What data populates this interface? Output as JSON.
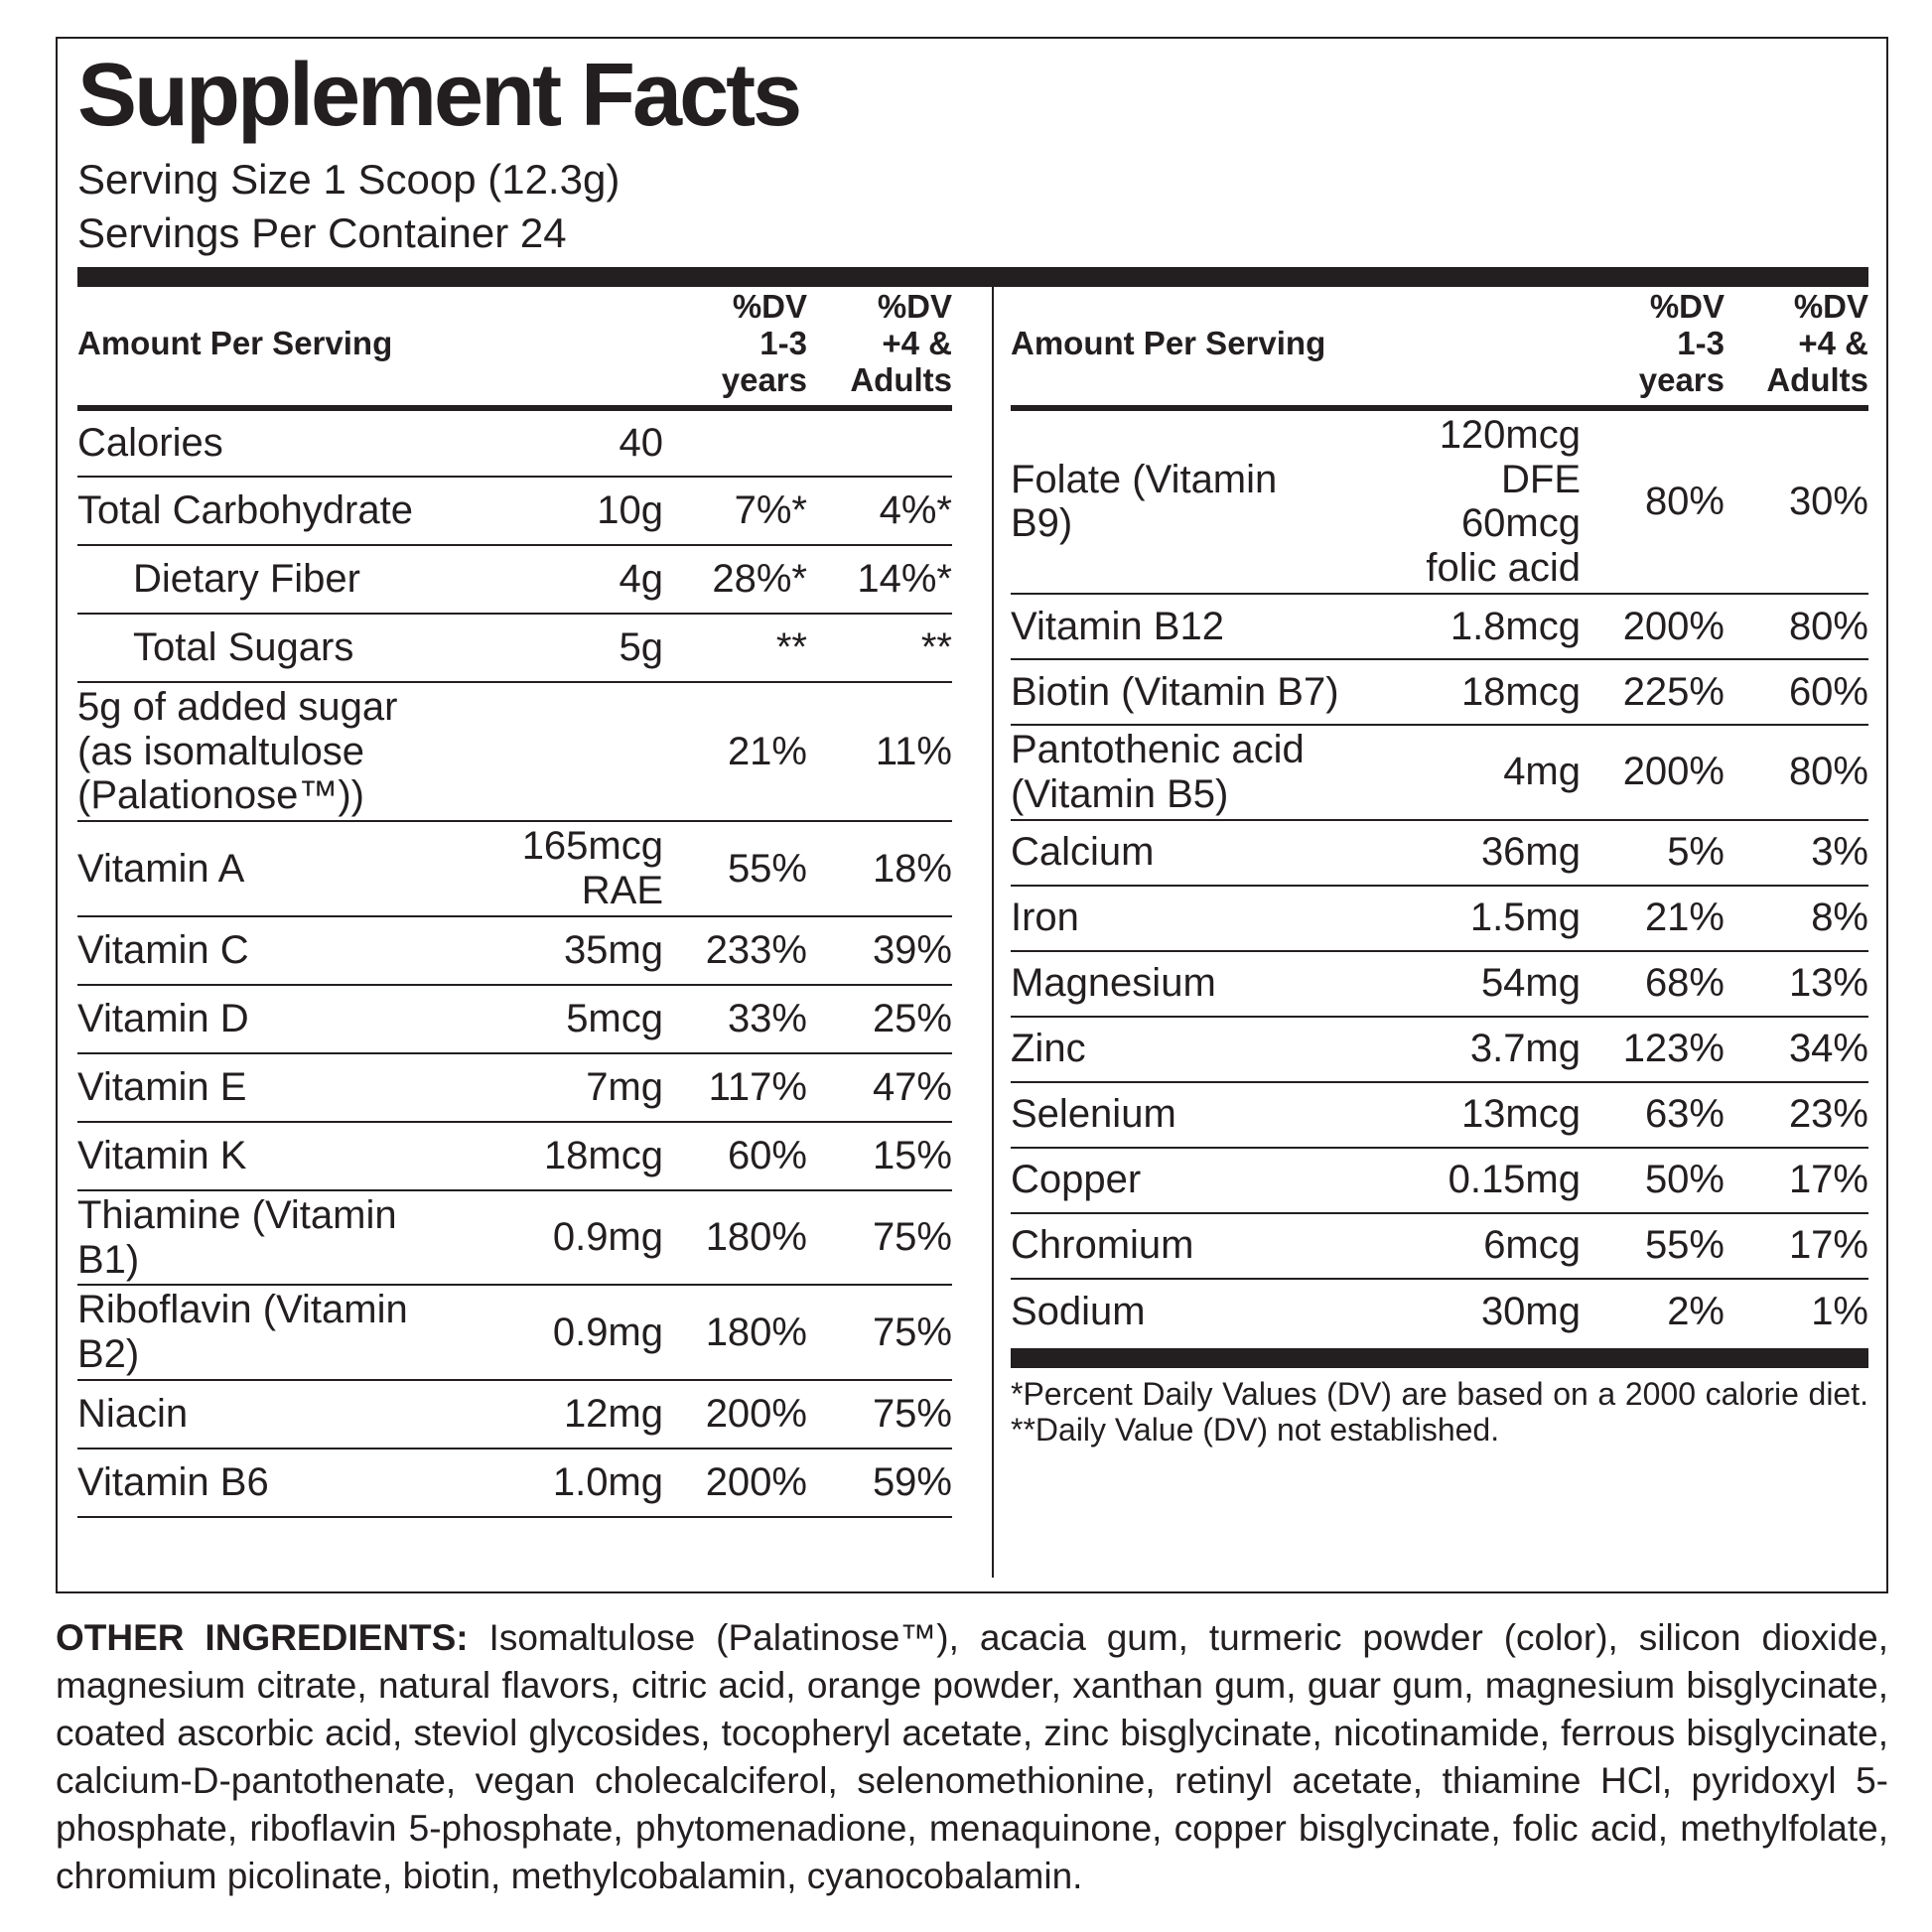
{
  "title": "Supplement Facts",
  "serving_size": "Serving Size 1 Scoop (12.3g)",
  "servings_per_container": "Servings Per Container 24",
  "left_table": {
    "headers": [
      "Amount Per Serving",
      "%DV\n1-3\nyears",
      "%DV\n+4 &\nAdults"
    ],
    "rows": [
      {
        "name": "Calories",
        "amount": "40"
      },
      {
        "name": "Total Carbohydrate",
        "amount": "10g",
        "dv_child": "7%*",
        "dv_adult": "4%*"
      },
      {
        "name": "Dietary Fiber",
        "indent": true,
        "amount": "4g",
        "dv_child": "28%*",
        "dv_adult": "14%*"
      },
      {
        "name": "Total Sugars",
        "indent": true,
        "amount": "5g",
        "dv_child": "**",
        "dv_adult": "**"
      },
      {
        "name": "5g of added sugar\n(as isomaltulose\n(Palationose™))",
        "dv_child": "21%",
        "dv_adult": "11%"
      },
      {
        "name": "Vitamin A",
        "amount": "165mcg\nRAE",
        "dv_child": "55%",
        "dv_adult": "18%"
      },
      {
        "name": "Vitamin C",
        "amount": "35mg",
        "dv_child": "233%",
        "dv_adult": "39%"
      },
      {
        "name": "Vitamin D",
        "amount": "5mcg",
        "dv_child": "33%",
        "dv_adult": "25%"
      },
      {
        "name": "Vitamin E",
        "amount": "7mg",
        "dv_child": "117%",
        "dv_adult": "47%"
      },
      {
        "name": "Vitamin K",
        "amount": "18mcg",
        "dv_child": "60%",
        "dv_adult": "15%"
      },
      {
        "name": "Thiamine (Vitamin B1)",
        "amount": "0.9mg",
        "dv_child": "180%",
        "dv_adult": "75%"
      },
      {
        "name": "Riboflavin (Vitamin B2)",
        "amount": "0.9mg",
        "dv_child": "180%",
        "dv_adult": "75%"
      },
      {
        "name": "Niacin",
        "amount": "12mg",
        "dv_child": "200%",
        "dv_adult": "75%"
      },
      {
        "name": "Vitamin B6",
        "amount": "1.0mg",
        "dv_child": "200%",
        "dv_adult": "59%"
      }
    ]
  },
  "right_table": {
    "headers": [
      "Amount Per Serving",
      "%DV\n1-3\nyears",
      "%DV\n+4 &\nAdults"
    ],
    "rows": [
      {
        "name": "Folate (Vitamin B9)",
        "amount": "120mcg\nDFE\n60mcg\nfolic acid",
        "dv_child": "80%",
        "dv_adult": "30%"
      },
      {
        "name": "Vitamin B12",
        "amount": "1.8mcg",
        "dv_child": "200%",
        "dv_adult": "80%"
      },
      {
        "name": "Biotin (Vitamin B7)",
        "amount": "18mcg",
        "dv_child": "225%",
        "dv_adult": "60%"
      },
      {
        "name": "Pantothenic acid\n(Vitamin B5)",
        "amount": "4mg",
        "dv_child": "200%",
        "dv_adult": "80%"
      },
      {
        "name": "Calcium",
        "amount": "36mg",
        "dv_child": "5%",
        "dv_adult": "3%"
      },
      {
        "name": "Iron",
        "amount": "1.5mg",
        "dv_child": "21%",
        "dv_adult": "8%"
      },
      {
        "name": "Magnesium",
        "amount": "54mg",
        "dv_child": "68%",
        "dv_adult": "13%"
      },
      {
        "name": "Zinc",
        "amount": "3.7mg",
        "dv_child": "123%",
        "dv_adult": "34%"
      },
      {
        "name": "Selenium",
        "amount": "13mcg",
        "dv_child": "63%",
        "dv_adult": "23%"
      },
      {
        "name": "Copper",
        "amount": "0.15mg",
        "dv_child": "50%",
        "dv_adult": "17%"
      },
      {
        "name": "Chromium",
        "amount": "6mcg",
        "dv_child": "55%",
        "dv_adult": "17%"
      },
      {
        "name": "Sodium",
        "amount": "30mg",
        "dv_child": "2%",
        "dv_adult": "1%"
      }
    ]
  },
  "footnote": "*Percent Daily Values (DV) are based on a 2000 calorie diet. **Daily Value (DV) not established.",
  "other_ingredients": {
    "label": "OTHER INGREDIENTS:",
    "text": "Isomaltulose (Palatinose™), acacia gum, turmeric powder (color), silicon dioxide, magnesium citrate, natural flavors, citric acid, orange powder, xanthan gum, guar gum, magnesium bisglycinate, coated ascorbic acid, steviol glycosides, tocopheryl acetate, zinc bisglycinate, nicotinamide, ferrous bisglycinate, calcium-D-pantothenate, vegan cholecalciferol, selenomethionine, retinyl acetate, thiamine HCl, pyridoxyl 5-phosphate, riboflavin 5-phosphate, phytomenadione, menaquinone, copper bisglycinate, folic acid, methylfolate, chromium picolinate, biotin, methylcobalamin, cyanocobalamin."
  }
}
